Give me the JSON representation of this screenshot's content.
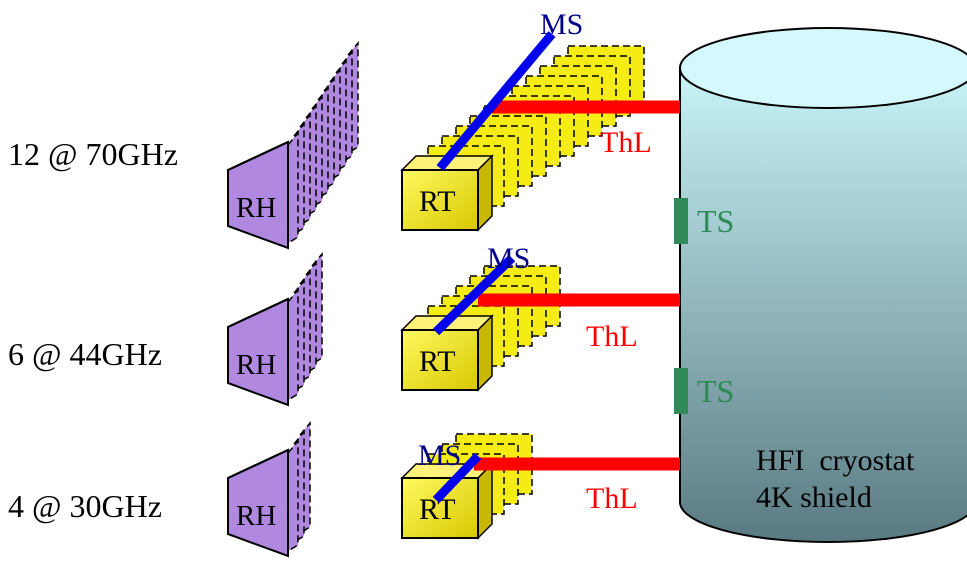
{
  "groups": [
    {
      "label": "12 @ 70GHz",
      "horn": "RH",
      "rt": "RT",
      "ms": "MS",
      "link": "ThL"
    },
    {
      "label": "6 @ 44GHz",
      "horn": "RH",
      "rt": "RT",
      "ms": "MS",
      "link": "ThL"
    },
    {
      "label": "4 @ 30GHz",
      "horn": "RH",
      "rt": "RT",
      "ms": "MS",
      "link": "ThL"
    }
  ],
  "cryostat": {
    "line1": "HFI  cryostat",
    "line2": "4K shield"
  },
  "shields": [
    {
      "label": "TS"
    },
    {
      "label": "TS"
    }
  ],
  "colors": {
    "horn": "#b088e0",
    "rt": "#f4ec14",
    "ms": "#0000ee",
    "link": "#ff0000",
    "ts": "#2e8b57",
    "ms_text": "#00008b",
    "cryostat_top": "#c8f4f8",
    "cryostat_bottom": "#5a7a82"
  }
}
